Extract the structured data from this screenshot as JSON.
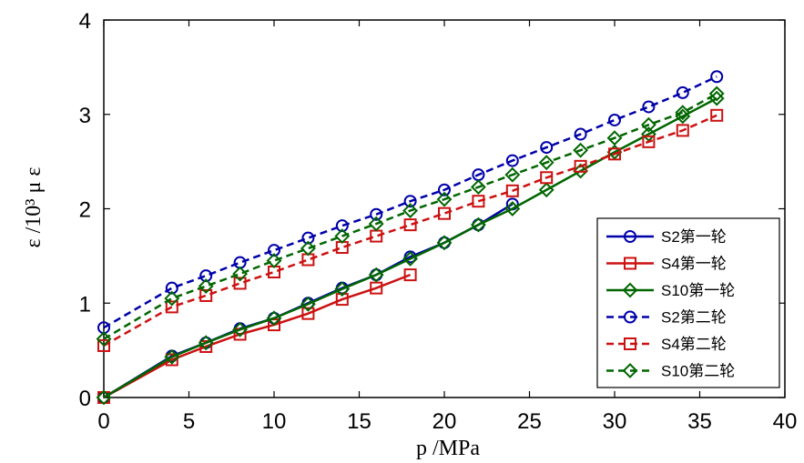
{
  "chart_data": {
    "type": "line",
    "xlabel": "p /MPa",
    "ylabel": "ε /10³ μ ε",
    "xlim": [
      0,
      40
    ],
    "ylim": [
      0,
      4
    ],
    "xticks": [
      "0",
      "5",
      "10",
      "15",
      "20",
      "25",
      "30",
      "35",
      "40"
    ],
    "yticks": [
      "0",
      "1",
      "2",
      "3",
      "4"
    ],
    "grid": false,
    "legend_position": "lower-right",
    "series": [
      {
        "name": "S2第一轮",
        "color": "#0000aa",
        "dash": "solid",
        "marker": "circle",
        "x": [
          0,
          4,
          6,
          8,
          10,
          12,
          14,
          16,
          18,
          20,
          22,
          24
        ],
        "y": [
          0,
          0.44,
          0.58,
          0.73,
          0.84,
          1.0,
          1.16,
          1.3,
          1.49,
          1.64,
          1.83,
          2.05
        ]
      },
      {
        "name": "S4第一轮",
        "color": "#cc1111",
        "dash": "solid",
        "marker": "square",
        "x": [
          0,
          4,
          6,
          8,
          10,
          12,
          14,
          16,
          18
        ],
        "y": [
          0,
          0.4,
          0.54,
          0.67,
          0.77,
          0.89,
          1.04,
          1.16,
          1.3
        ]
      },
      {
        "name": "S10第一轮",
        "color": "#006600",
        "dash": "solid",
        "marker": "diamond",
        "x": [
          0,
          4,
          6,
          8,
          10,
          12,
          14,
          16,
          18,
          20,
          22,
          24,
          26,
          28,
          30,
          32,
          34,
          36
        ],
        "y": [
          0,
          0.43,
          0.58,
          0.72,
          0.84,
          0.99,
          1.15,
          1.3,
          1.47,
          1.64,
          1.83,
          2.0,
          2.2,
          2.4,
          2.6,
          2.79,
          2.98,
          3.17
        ]
      },
      {
        "name": "S2第二轮",
        "color": "#0000aa",
        "dash": "dashed",
        "marker": "circle",
        "x": [
          0,
          4,
          6,
          8,
          10,
          12,
          14,
          16,
          18,
          20,
          22,
          24,
          26,
          28,
          30,
          32,
          34,
          36
        ],
        "y": [
          0.74,
          1.16,
          1.29,
          1.43,
          1.56,
          1.69,
          1.82,
          1.94,
          2.08,
          2.2,
          2.36,
          2.51,
          2.65,
          2.79,
          2.94,
          3.08,
          3.23,
          3.4
        ]
      },
      {
        "name": "S4第二轮",
        "color": "#cc1111",
        "dash": "dashed",
        "marker": "square",
        "x": [
          0,
          4,
          6,
          8,
          10,
          12,
          14,
          16,
          18,
          20,
          22,
          24,
          26,
          28,
          30,
          32,
          34,
          36
        ],
        "y": [
          0.55,
          0.96,
          1.08,
          1.21,
          1.33,
          1.46,
          1.59,
          1.71,
          1.83,
          1.95,
          2.08,
          2.19,
          2.33,
          2.45,
          2.58,
          2.71,
          2.83,
          2.99
        ]
      },
      {
        "name": "S10第二轮",
        "color": "#006600",
        "dash": "dashed",
        "marker": "diamond",
        "x": [
          0,
          4,
          6,
          8,
          10,
          12,
          14,
          16,
          18,
          20,
          22,
          24,
          26,
          28,
          30,
          32,
          34,
          36
        ],
        "y": [
          0.62,
          1.05,
          1.18,
          1.31,
          1.45,
          1.58,
          1.71,
          1.84,
          1.98,
          2.1,
          2.23,
          2.36,
          2.49,
          2.62,
          2.75,
          2.89,
          3.02,
          3.22
        ]
      }
    ]
  }
}
